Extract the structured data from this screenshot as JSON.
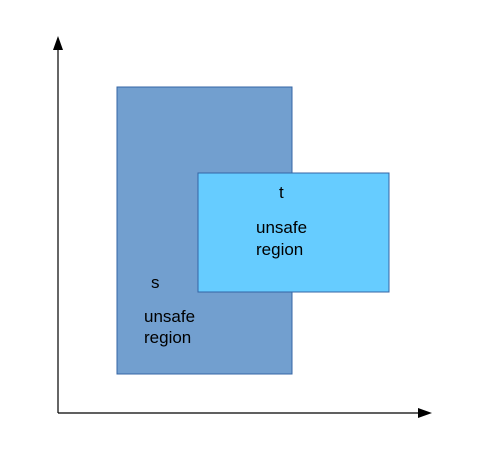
{
  "regions": [
    {
      "letter": "s",
      "line1": "unsafe",
      "line2": "region",
      "fill": "#729fcf",
      "stroke": "#3465a4"
    },
    {
      "letter": "t",
      "line1": "unsafe",
      "line2": "region",
      "fill": "#66ccff",
      "stroke": "#3465a4"
    }
  ],
  "axes": {
    "color": "#000000"
  }
}
